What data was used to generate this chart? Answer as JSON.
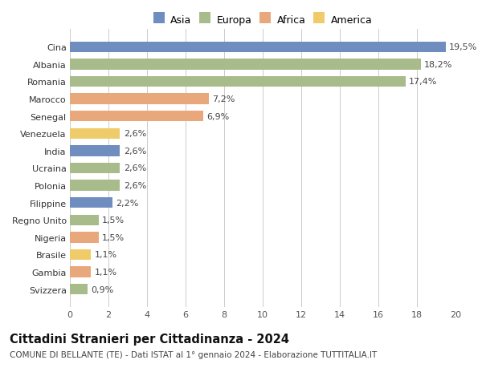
{
  "countries": [
    "Svizzera",
    "Gambia",
    "Brasile",
    "Nigeria",
    "Regno Unito",
    "Filippine",
    "Polonia",
    "Ucraina",
    "India",
    "Venezuela",
    "Senegal",
    "Marocco",
    "Romania",
    "Albania",
    "Cina"
  ],
  "values": [
    0.9,
    1.1,
    1.1,
    1.5,
    1.5,
    2.2,
    2.6,
    2.6,
    2.6,
    2.6,
    6.9,
    7.2,
    17.4,
    18.2,
    19.5
  ],
  "labels": [
    "0,9%",
    "1,1%",
    "1,1%",
    "1,5%",
    "1,5%",
    "2,2%",
    "2,6%",
    "2,6%",
    "2,6%",
    "2,6%",
    "6,9%",
    "7,2%",
    "17,4%",
    "18,2%",
    "19,5%"
  ],
  "continents": [
    "Europa",
    "Africa",
    "America",
    "Africa",
    "Europa",
    "Asia",
    "Europa",
    "Europa",
    "Asia",
    "America",
    "Africa",
    "Africa",
    "Europa",
    "Europa",
    "Asia"
  ],
  "colors": {
    "Asia": "#6f8ebf",
    "Europa": "#a8bb8a",
    "Africa": "#e8a87c",
    "America": "#f0cb6a"
  },
  "legend_order": [
    "Asia",
    "Europa",
    "Africa",
    "America"
  ],
  "title": "Cittadini Stranieri per Cittadinanza - 2024",
  "subtitle": "COMUNE DI BELLANTE (TE) - Dati ISTAT al 1° gennaio 2024 - Elaborazione TUTTITALIA.IT",
  "xlim": [
    0,
    20
  ],
  "xticks": [
    0,
    2,
    4,
    6,
    8,
    10,
    12,
    14,
    16,
    18,
    20
  ],
  "background_color": "#ffffff",
  "grid_color": "#cccccc",
  "bar_height": 0.62,
  "label_fontsize": 8.0,
  "tick_fontsize": 8.0,
  "title_fontsize": 10.5,
  "subtitle_fontsize": 7.5,
  "legend_fontsize": 9.0
}
